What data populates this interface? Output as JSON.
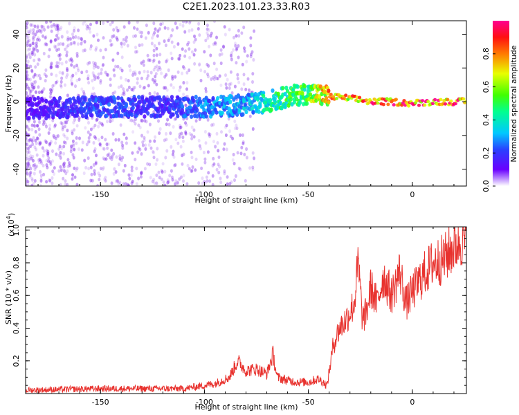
{
  "title": "C2E1.2023.101.23.33.R03",
  "colors": {
    "snr_line": "#e8322e",
    "ridge_low": "#5a00e0",
    "ridge_high": "#e8322e",
    "frame": "#000000"
  },
  "chart_data": [
    {
      "type": "heatmap",
      "name": "spectrogram",
      "xlabel": "Height of straight line (km)",
      "ylabel": "Frequency (Hz)",
      "xlim": [
        -186,
        26
      ],
      "ylim": [
        -50,
        48
      ],
      "xticks": [
        -150,
        -100,
        -50,
        0
      ],
      "xtick_labels": [
        "-150",
        "-100",
        "-50",
        "0"
      ],
      "yticks": [
        -40,
        -20,
        0,
        20,
        40
      ],
      "ytick_labels": [
        "-40",
        "-20",
        "0",
        "20",
        "40"
      ],
      "colorbar": {
        "label": "Normalized spectral amplitude",
        "range": [
          0,
          1
        ],
        "ticks": [
          0.0,
          0.2,
          0.4,
          0.6,
          0.8
        ],
        "tick_labels": [
          "0.0",
          "0.2",
          "0.4",
          "0.6",
          "0.8"
        ]
      },
      "ridge": {
        "x": [
          -186,
          -150,
          -120,
          -100,
          -80,
          -70,
          -60,
          -50,
          -45,
          -40,
          -30,
          -20,
          -10,
          0,
          10,
          26
        ],
        "freq": [
          -4,
          -3,
          -3,
          -3,
          -2,
          0,
          3,
          5,
          4,
          3,
          2,
          0,
          0,
          -1,
          0,
          0
        ],
        "amplitude": [
          0.15,
          0.25,
          0.2,
          0.3,
          0.35,
          0.45,
          0.55,
          0.6,
          0.7,
          0.9,
          0.85,
          0.95,
          0.95,
          1.0,
          0.95,
          0.95
        ]
      }
    },
    {
      "type": "line",
      "name": "snr",
      "xlabel": "Height of straight line (km)",
      "ylabel": "SNR (10 * v/v)",
      "scale_label": "(x10",
      "scale_exp": "4",
      "scale_close": ")",
      "xlim": [
        -186,
        26
      ],
      "ylim": [
        0,
        1.02
      ],
      "xticks": [
        -150,
        -100,
        -50,
        0
      ],
      "xtick_labels": [
        "-150",
        "-100",
        "-50",
        "0"
      ],
      "yticks": [
        0.2,
        0.4,
        0.6,
        0.8,
        1.0
      ],
      "ytick_labels": [
        "0.2",
        "0.4",
        "0.6",
        "0.8",
        "1.0"
      ],
      "series": [
        {
          "name": "SNR",
          "x": [
            -186,
            -170,
            -150,
            -130,
            -110,
            -100,
            -95,
            -88,
            -84,
            -80,
            -75,
            -70,
            -67,
            -65,
            -60,
            -55,
            -50,
            -45,
            -41,
            -38,
            -35,
            -32,
            -30,
            -28,
            -26,
            -24,
            -22,
            -20,
            -17,
            -14,
            -10,
            -6,
            -3,
            0,
            5,
            10,
            15,
            20,
            24,
            26
          ],
          "y": [
            0.02,
            0.025,
            0.03,
            0.03,
            0.03,
            0.05,
            0.06,
            0.1,
            0.2,
            0.14,
            0.15,
            0.12,
            0.24,
            0.1,
            0.08,
            0.07,
            0.07,
            0.09,
            0.05,
            0.3,
            0.4,
            0.45,
            0.5,
            0.55,
            0.8,
            0.45,
            0.5,
            0.65,
            0.55,
            0.72,
            0.6,
            0.75,
            0.55,
            0.62,
            0.72,
            0.8,
            0.82,
            0.9,
            0.95,
            0.92
          ]
        }
      ]
    }
  ]
}
